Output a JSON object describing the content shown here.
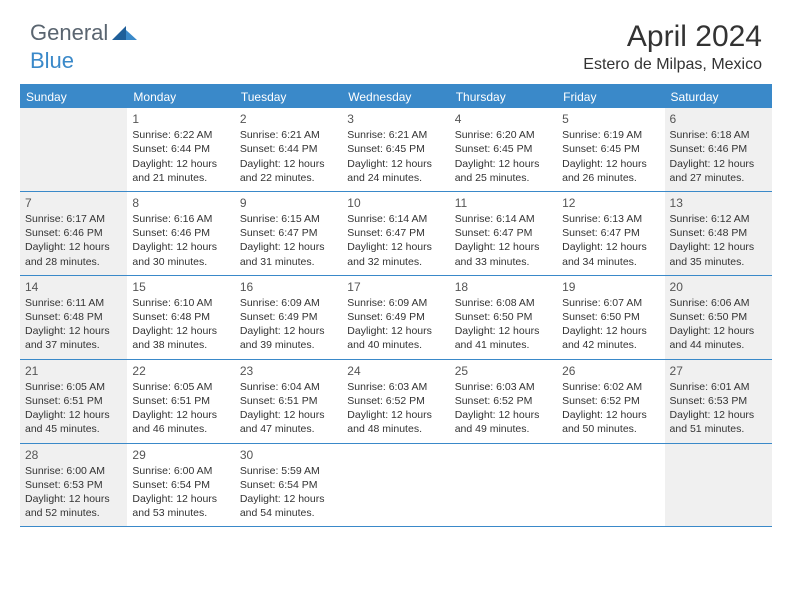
{
  "logo": {
    "general": "General",
    "blue": "Blue"
  },
  "title": "April 2024",
  "location": "Estero de Milpas, Mexico",
  "colors": {
    "header_bg": "#3a89c9",
    "header_text": "#ffffff",
    "border": "#3a89c9",
    "shaded_bg": "#f0f0f0",
    "text": "#333333",
    "logo_gray": "#5a6570",
    "logo_blue": "#3a89c9"
  },
  "weekdays": [
    "Sunday",
    "Monday",
    "Tuesday",
    "Wednesday",
    "Thursday",
    "Friday",
    "Saturday"
  ],
  "weeks": [
    [
      {
        "num": "",
        "sunrise": "",
        "sunset": "",
        "daylight": "",
        "shaded": true
      },
      {
        "num": "1",
        "sunrise": "Sunrise: 6:22 AM",
        "sunset": "Sunset: 6:44 PM",
        "daylight": "Daylight: 12 hours and 21 minutes.",
        "shaded": false
      },
      {
        "num": "2",
        "sunrise": "Sunrise: 6:21 AM",
        "sunset": "Sunset: 6:44 PM",
        "daylight": "Daylight: 12 hours and 22 minutes.",
        "shaded": false
      },
      {
        "num": "3",
        "sunrise": "Sunrise: 6:21 AM",
        "sunset": "Sunset: 6:45 PM",
        "daylight": "Daylight: 12 hours and 24 minutes.",
        "shaded": false
      },
      {
        "num": "4",
        "sunrise": "Sunrise: 6:20 AM",
        "sunset": "Sunset: 6:45 PM",
        "daylight": "Daylight: 12 hours and 25 minutes.",
        "shaded": false
      },
      {
        "num": "5",
        "sunrise": "Sunrise: 6:19 AM",
        "sunset": "Sunset: 6:45 PM",
        "daylight": "Daylight: 12 hours and 26 minutes.",
        "shaded": false
      },
      {
        "num": "6",
        "sunrise": "Sunrise: 6:18 AM",
        "sunset": "Sunset: 6:46 PM",
        "daylight": "Daylight: 12 hours and 27 minutes.",
        "shaded": true
      }
    ],
    [
      {
        "num": "7",
        "sunrise": "Sunrise: 6:17 AM",
        "sunset": "Sunset: 6:46 PM",
        "daylight": "Daylight: 12 hours and 28 minutes.",
        "shaded": true
      },
      {
        "num": "8",
        "sunrise": "Sunrise: 6:16 AM",
        "sunset": "Sunset: 6:46 PM",
        "daylight": "Daylight: 12 hours and 30 minutes.",
        "shaded": false
      },
      {
        "num": "9",
        "sunrise": "Sunrise: 6:15 AM",
        "sunset": "Sunset: 6:47 PM",
        "daylight": "Daylight: 12 hours and 31 minutes.",
        "shaded": false
      },
      {
        "num": "10",
        "sunrise": "Sunrise: 6:14 AM",
        "sunset": "Sunset: 6:47 PM",
        "daylight": "Daylight: 12 hours and 32 minutes.",
        "shaded": false
      },
      {
        "num": "11",
        "sunrise": "Sunrise: 6:14 AM",
        "sunset": "Sunset: 6:47 PM",
        "daylight": "Daylight: 12 hours and 33 minutes.",
        "shaded": false
      },
      {
        "num": "12",
        "sunrise": "Sunrise: 6:13 AM",
        "sunset": "Sunset: 6:47 PM",
        "daylight": "Daylight: 12 hours and 34 minutes.",
        "shaded": false
      },
      {
        "num": "13",
        "sunrise": "Sunrise: 6:12 AM",
        "sunset": "Sunset: 6:48 PM",
        "daylight": "Daylight: 12 hours and 35 minutes.",
        "shaded": true
      }
    ],
    [
      {
        "num": "14",
        "sunrise": "Sunrise: 6:11 AM",
        "sunset": "Sunset: 6:48 PM",
        "daylight": "Daylight: 12 hours and 37 minutes.",
        "shaded": true
      },
      {
        "num": "15",
        "sunrise": "Sunrise: 6:10 AM",
        "sunset": "Sunset: 6:48 PM",
        "daylight": "Daylight: 12 hours and 38 minutes.",
        "shaded": false
      },
      {
        "num": "16",
        "sunrise": "Sunrise: 6:09 AM",
        "sunset": "Sunset: 6:49 PM",
        "daylight": "Daylight: 12 hours and 39 minutes.",
        "shaded": false
      },
      {
        "num": "17",
        "sunrise": "Sunrise: 6:09 AM",
        "sunset": "Sunset: 6:49 PM",
        "daylight": "Daylight: 12 hours and 40 minutes.",
        "shaded": false
      },
      {
        "num": "18",
        "sunrise": "Sunrise: 6:08 AM",
        "sunset": "Sunset: 6:50 PM",
        "daylight": "Daylight: 12 hours and 41 minutes.",
        "shaded": false
      },
      {
        "num": "19",
        "sunrise": "Sunrise: 6:07 AM",
        "sunset": "Sunset: 6:50 PM",
        "daylight": "Daylight: 12 hours and 42 minutes.",
        "shaded": false
      },
      {
        "num": "20",
        "sunrise": "Sunrise: 6:06 AM",
        "sunset": "Sunset: 6:50 PM",
        "daylight": "Daylight: 12 hours and 44 minutes.",
        "shaded": true
      }
    ],
    [
      {
        "num": "21",
        "sunrise": "Sunrise: 6:05 AM",
        "sunset": "Sunset: 6:51 PM",
        "daylight": "Daylight: 12 hours and 45 minutes.",
        "shaded": true
      },
      {
        "num": "22",
        "sunrise": "Sunrise: 6:05 AM",
        "sunset": "Sunset: 6:51 PM",
        "daylight": "Daylight: 12 hours and 46 minutes.",
        "shaded": false
      },
      {
        "num": "23",
        "sunrise": "Sunrise: 6:04 AM",
        "sunset": "Sunset: 6:51 PM",
        "daylight": "Daylight: 12 hours and 47 minutes.",
        "shaded": false
      },
      {
        "num": "24",
        "sunrise": "Sunrise: 6:03 AM",
        "sunset": "Sunset: 6:52 PM",
        "daylight": "Daylight: 12 hours and 48 minutes.",
        "shaded": false
      },
      {
        "num": "25",
        "sunrise": "Sunrise: 6:03 AM",
        "sunset": "Sunset: 6:52 PM",
        "daylight": "Daylight: 12 hours and 49 minutes.",
        "shaded": false
      },
      {
        "num": "26",
        "sunrise": "Sunrise: 6:02 AM",
        "sunset": "Sunset: 6:52 PM",
        "daylight": "Daylight: 12 hours and 50 minutes.",
        "shaded": false
      },
      {
        "num": "27",
        "sunrise": "Sunrise: 6:01 AM",
        "sunset": "Sunset: 6:53 PM",
        "daylight": "Daylight: 12 hours and 51 minutes.",
        "shaded": true
      }
    ],
    [
      {
        "num": "28",
        "sunrise": "Sunrise: 6:00 AM",
        "sunset": "Sunset: 6:53 PM",
        "daylight": "Daylight: 12 hours and 52 minutes.",
        "shaded": true
      },
      {
        "num": "29",
        "sunrise": "Sunrise: 6:00 AM",
        "sunset": "Sunset: 6:54 PM",
        "daylight": "Daylight: 12 hours and 53 minutes.",
        "shaded": false
      },
      {
        "num": "30",
        "sunrise": "Sunrise: 5:59 AM",
        "sunset": "Sunset: 6:54 PM",
        "daylight": "Daylight: 12 hours and 54 minutes.",
        "shaded": false
      },
      {
        "num": "",
        "sunrise": "",
        "sunset": "",
        "daylight": "",
        "shaded": false
      },
      {
        "num": "",
        "sunrise": "",
        "sunset": "",
        "daylight": "",
        "shaded": false
      },
      {
        "num": "",
        "sunrise": "",
        "sunset": "",
        "daylight": "",
        "shaded": false
      },
      {
        "num": "",
        "sunrise": "",
        "sunset": "",
        "daylight": "",
        "shaded": true
      }
    ]
  ]
}
